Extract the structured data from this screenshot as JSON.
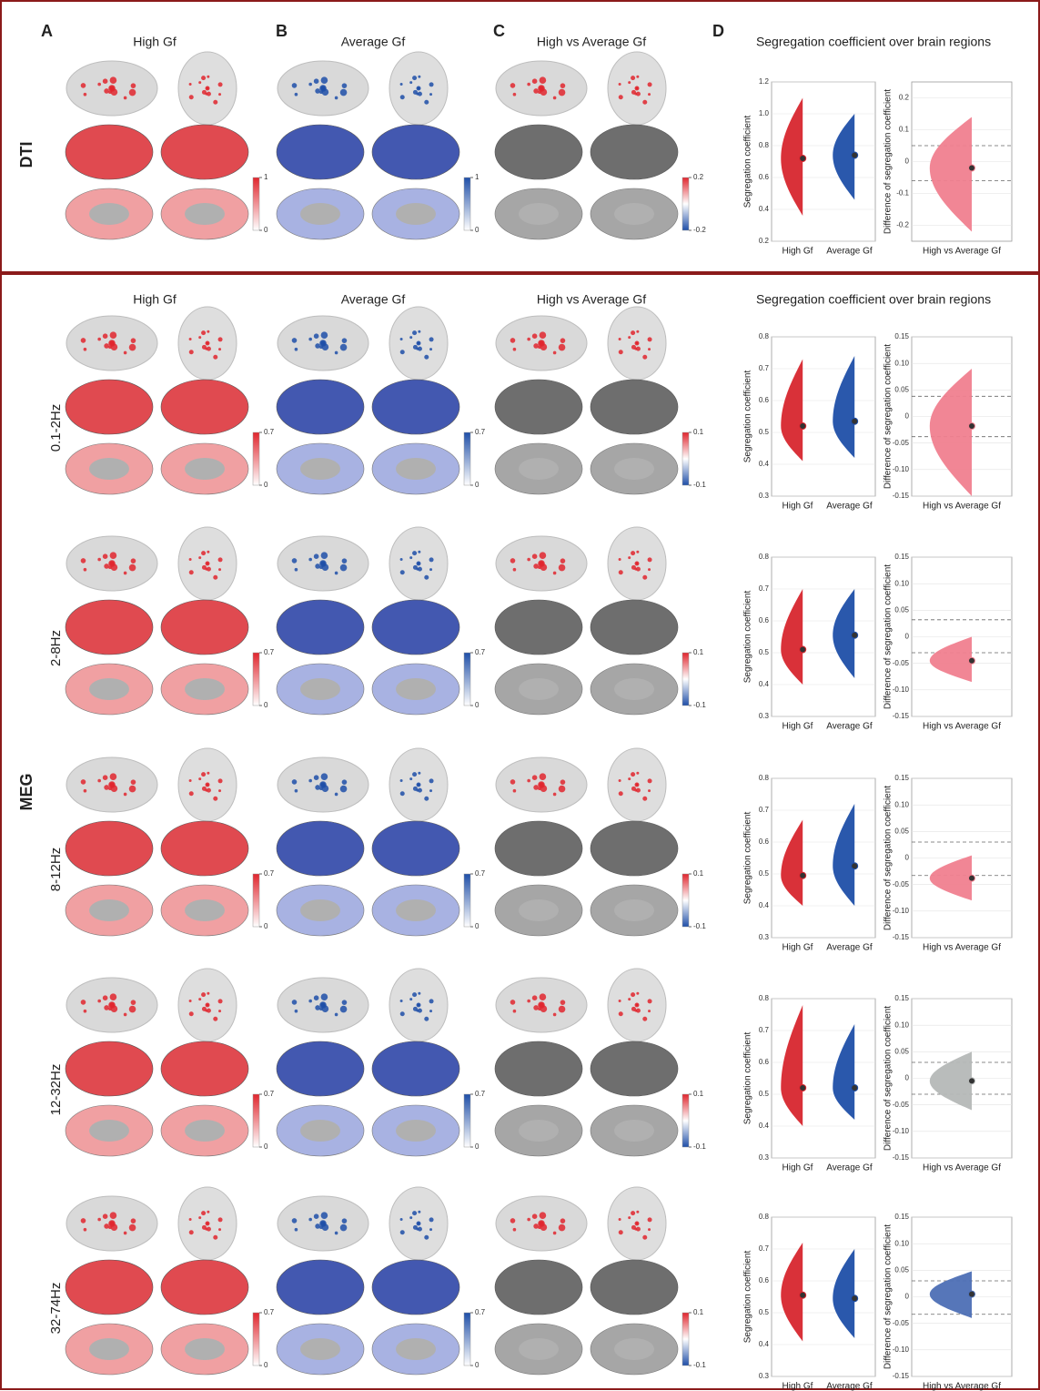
{
  "panel_letters": [
    "A",
    "B",
    "C",
    "D"
  ],
  "sections": [
    {
      "label": "DTI",
      "headers": [
        "High Gf",
        "Average Gf",
        "High vs Average Gf"
      ],
      "d_title": "Segregation coefficient over brain regions",
      "rows": [
        {
          "colorbar_ticks": [
            [
              1,
              0
            ],
            [
              1,
              0
            ],
            [
              0.2,
              -0.2
            ]
          ],
          "charts": [
            {
              "type": "violin",
              "ylabel": "Segregation coefficient",
              "ylim": [
                0.2,
                1.2
              ],
              "yticks": [
                0.2,
                0.4,
                0.6,
                0.8,
                {
                  "value": 1,
                  "label": "1.0"
                },
                1.2
              ],
              "categories": [
                "High Gf",
                "Average Gf"
              ],
              "colors": [
                "#d7262e",
                "#1f4fa8"
              ],
              "means": [
                0.72,
                0.74
              ],
              "ranges": [
                [
                  0.36,
                  1.1
                ],
                [
                  0.46,
                  1.0
                ]
              ]
            },
            {
              "type": "violin",
              "ylabel": "Difference of segregation coefficient",
              "ylim": [
                -0.25,
                0.25
              ],
              "yticks": [
                -0.2,
                -0.1,
                0,
                0.1,
                0.2
              ],
              "categories": [
                "High vs Average Gf"
              ],
              "colors": [
                "#f0808f"
              ],
              "means": [
                -0.02
              ],
              "ranges": [
                [
                  -0.22,
                  0.14
                ]
              ],
              "hlines": [
                0.05,
                -0.06
              ]
            }
          ]
        }
      ]
    },
    {
      "label": "MEG",
      "headers": [
        "High Gf",
        "Average Gf",
        "High vs Average Gf"
      ],
      "d_title": "Segregation coefficient over brain regions",
      "rows": [
        {
          "label": "0.1-2Hz",
          "colorbar_ticks": [
            [
              0.7,
              0
            ],
            [
              0.7,
              0
            ],
            [
              0.1,
              -0.1
            ]
          ],
          "charts": [
            {
              "type": "violin",
              "ylabel": "Segregation coefficient",
              "ylim": [
                0.3,
                0.8
              ],
              "yticks": [
                0.3,
                0.4,
                0.5,
                0.6,
                0.7,
                0.8
              ],
              "categories": [
                "High Gf",
                "Average Gf"
              ],
              "colors": [
                "#d7262e",
                "#1f4fa8"
              ],
              "means": [
                0.52,
                0.535
              ],
              "ranges": [
                [
                  0.41,
                  0.73
                ],
                [
                  0.42,
                  0.74
                ]
              ]
            },
            {
              "type": "violin",
              "ylabel": "Difference of segregation coefficient",
              "ylim": [
                -0.15,
                0.15
              ],
              "yticks": [
                -0.15,
                {
                  "value": -0.1,
                  "label": "-0.10"
                },
                -0.05,
                0,
                0.05,
                {
                  "value": 0.1,
                  "label": "0.10"
                },
                0.15
              ],
              "categories": [
                "High vs Average Gf"
              ],
              "colors": [
                "#f0808f"
              ],
              "means": [
                -0.018
              ],
              "ranges": [
                [
                  -0.15,
                  0.09
                ]
              ],
              "hlines": [
                0.038,
                -0.038
              ]
            }
          ]
        },
        {
          "label": "2-8Hz",
          "colorbar_ticks": [
            [
              0.7,
              0
            ],
            [
              0.7,
              0
            ],
            [
              0.1,
              -0.1
            ]
          ],
          "charts": [
            {
              "type": "violin",
              "ylabel": "Segregation coefficient",
              "ylim": [
                0.3,
                0.8
              ],
              "yticks": [
                0.3,
                0.4,
                0.5,
                0.6,
                0.7,
                0.8
              ],
              "categories": [
                "High Gf",
                "Average Gf"
              ],
              "colors": [
                "#d7262e",
                "#1f4fa8"
              ],
              "means": [
                0.51,
                0.555
              ],
              "ranges": [
                [
                  0.4,
                  0.7
                ],
                [
                  0.42,
                  0.7
                ]
              ]
            },
            {
              "type": "violin",
              "ylabel": "Difference of segregation coefficient",
              "ylim": [
                -0.15,
                0.15
              ],
              "yticks": [
                -0.15,
                {
                  "value": -0.1,
                  "label": "-0.10"
                },
                -0.05,
                0,
                0.05,
                {
                  "value": 0.1,
                  "label": "0.10"
                },
                0.15
              ],
              "categories": [
                "High vs Average Gf"
              ],
              "colors": [
                "#f0808f"
              ],
              "means": [
                -0.045
              ],
              "ranges": [
                [
                  -0.085,
                  0.0
                ]
              ],
              "hlines": [
                0.032,
                -0.03
              ]
            }
          ]
        },
        {
          "label": "8-12Hz",
          "colorbar_ticks": [
            [
              0.7,
              0
            ],
            [
              0.7,
              0
            ],
            [
              0.1,
              -0.1
            ]
          ],
          "charts": [
            {
              "type": "violin",
              "ylabel": "Segregation coefficient",
              "ylim": [
                0.3,
                0.8
              ],
              "yticks": [
                0.3,
                0.4,
                0.5,
                0.6,
                0.7,
                0.8
              ],
              "categories": [
                "High Gf",
                "Average Gf"
              ],
              "colors": [
                "#d7262e",
                "#1f4fa8"
              ],
              "means": [
                0.495,
                0.525
              ],
              "ranges": [
                [
                  0.4,
                  0.67
                ],
                [
                  0.4,
                  0.72
                ]
              ]
            },
            {
              "type": "violin",
              "ylabel": "Difference of segregation coefficient",
              "ylim": [
                -0.15,
                0.15
              ],
              "yticks": [
                -0.15,
                {
                  "value": -0.1,
                  "label": "-0.10"
                },
                -0.05,
                0,
                0.05,
                {
                  "value": 0.1,
                  "label": "0.10"
                },
                0.15
              ],
              "categories": [
                "High vs Average Gf"
              ],
              "colors": [
                "#f0808f"
              ],
              "means": [
                -0.038
              ],
              "ranges": [
                [
                  -0.08,
                  0.005
                ]
              ],
              "hlines": [
                0.03,
                -0.033
              ]
            }
          ]
        },
        {
          "label": "12-32Hz",
          "colorbar_ticks": [
            [
              0.7,
              0
            ],
            [
              0.7,
              0
            ],
            [
              0.1,
              -0.1
            ]
          ],
          "charts": [
            {
              "type": "violin",
              "ylabel": "Segregation coefficient",
              "ylim": [
                0.3,
                0.8
              ],
              "yticks": [
                0.3,
                0.4,
                0.5,
                0.6,
                0.7,
                0.8
              ],
              "categories": [
                "High Gf",
                "Average Gf"
              ],
              "colors": [
                "#d7262e",
                "#1f4fa8"
              ],
              "means": [
                0.52,
                0.52
              ],
              "ranges": [
                [
                  0.4,
                  0.78
                ],
                [
                  0.42,
                  0.72
                ]
              ]
            },
            {
              "type": "violin",
              "ylabel": "Difference of segregation coefficient",
              "ylim": [
                -0.15,
                0.15
              ],
              "yticks": [
                -0.15,
                {
                  "value": -0.1,
                  "label": "-0.10"
                },
                -0.05,
                0,
                0.05,
                {
                  "value": 0.1,
                  "label": "0.10"
                },
                0.15
              ],
              "categories": [
                "High vs Average Gf"
              ],
              "colors": [
                "#b5b8b7"
              ],
              "means": [
                -0.005
              ],
              "ranges": [
                [
                  -0.06,
                  0.05
                ]
              ],
              "hlines": [
                0.03,
                -0.03
              ]
            }
          ]
        },
        {
          "label": "32-74Hz",
          "colorbar_ticks": [
            [
              0.7,
              0
            ],
            [
              0.7,
              0
            ],
            [
              0.1,
              -0.1
            ]
          ],
          "charts": [
            {
              "type": "violin",
              "ylabel": "Segregation coefficient",
              "ylim": [
                0.3,
                0.8
              ],
              "yticks": [
                0.3,
                0.4,
                0.5,
                0.6,
                0.7,
                0.8
              ],
              "categories": [
                "High Gf",
                "Average Gf"
              ],
              "colors": [
                "#d7262e",
                "#1f4fa8"
              ],
              "means": [
                0.555,
                0.545
              ],
              "ranges": [
                [
                  0.41,
                  0.72
                ],
                [
                  0.42,
                  0.7
                ]
              ]
            },
            {
              "type": "violin",
              "ylabel": "Difference of segregation coefficient",
              "ylim": [
                -0.15,
                0.15
              ],
              "yticks": [
                -0.15,
                {
                  "value": -0.1,
                  "label": "-0.10"
                },
                -0.05,
                0,
                0.05,
                {
                  "value": 0.1,
                  "label": "0.10"
                },
                0.15
              ],
              "categories": [
                "High vs Average Gf"
              ],
              "colors": [
                "#4d6fb5"
              ],
              "means": [
                0.005
              ],
              "ranges": [
                [
                  -0.04,
                  0.048
                ]
              ],
              "hlines": [
                0.03,
                -0.033
              ]
            }
          ]
        }
      ]
    }
  ]
}
